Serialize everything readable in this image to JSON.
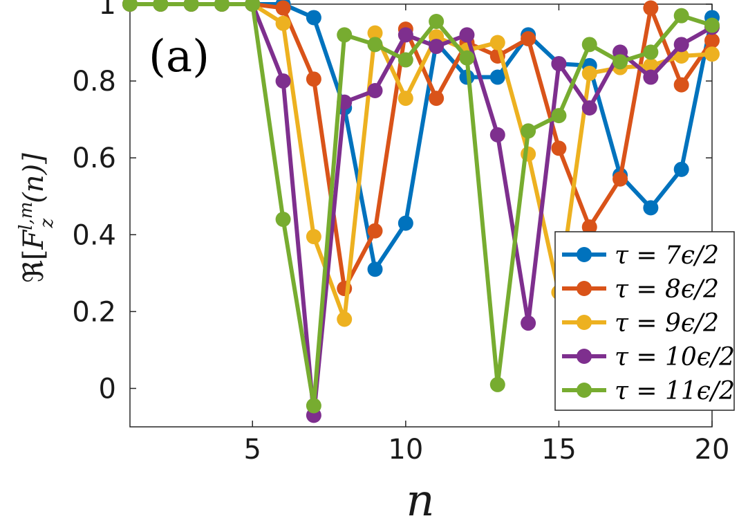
{
  "chart_data": {
    "type": "line",
    "panel_label": "(a)",
    "xlabel": "n",
    "ylabel": "ℜ[F_z^{l,m}(n)]",
    "ylabel_parts": {
      "prefix": "ℜ[",
      "base": "F",
      "sup": "l,m",
      "sub": "z",
      "suffix": "(n)]"
    },
    "xlim": [
      1,
      20
    ],
    "ylim": [
      -0.1,
      1.0
    ],
    "xticks": [
      5,
      10,
      15,
      20
    ],
    "xtick_labels": [
      "5",
      "10",
      "15",
      "20"
    ],
    "yticks": [
      0,
      0.2,
      0.4,
      0.6,
      0.8,
      1
    ],
    "ytick_labels": [
      "0",
      "0.2",
      "0.4",
      "0.6",
      "0.8",
      "1"
    ],
    "grid": false,
    "legend_position": "bottom-right",
    "x": [
      1,
      2,
      3,
      4,
      5,
      6,
      7,
      8,
      9,
      10,
      11,
      12,
      13,
      14,
      15,
      16,
      17,
      18,
      19,
      20
    ],
    "series": [
      {
        "name": "τ = 7ϵ/2",
        "color": "#0072BD",
        "values": [
          1,
          1,
          1,
          1,
          1,
          1.0,
          0.965,
          0.73,
          0.31,
          0.43,
          0.9,
          0.81,
          0.81,
          0.92,
          0.845,
          0.84,
          0.555,
          0.47,
          0.57,
          0.965
        ]
      },
      {
        "name": "τ = 8ϵ/2",
        "color": "#D95319",
        "values": [
          1,
          1,
          1,
          1,
          1,
          0.99,
          0.805,
          0.26,
          0.41,
          0.935,
          0.755,
          0.9,
          0.865,
          0.91,
          0.625,
          0.42,
          0.545,
          0.99,
          0.79,
          0.905
        ]
      },
      {
        "name": "τ = 9ϵ/2",
        "color": "#EDB120",
        "values": [
          1,
          1,
          1,
          1,
          1,
          0.95,
          0.395,
          0.18,
          0.925,
          0.755,
          0.915,
          0.88,
          0.9,
          0.61,
          0.25,
          0.82,
          0.835,
          0.84,
          0.865,
          0.87
        ]
      },
      {
        "name": "τ = 10ϵ/2",
        "color": "#7E2F8E",
        "values": [
          1,
          1,
          1,
          1,
          1,
          0.8,
          -0.07,
          0.745,
          0.775,
          0.92,
          0.89,
          0.92,
          0.66,
          0.17,
          0.845,
          0.73,
          0.875,
          0.81,
          0.895,
          0.94
        ]
      },
      {
        "name": "τ = 11ϵ/2",
        "color": "#77AC30",
        "values": [
          1,
          1,
          1,
          1,
          1,
          0.44,
          -0.045,
          0.92,
          0.895,
          0.855,
          0.955,
          0.86,
          0.01,
          0.67,
          0.71,
          0.895,
          0.85,
          0.875,
          0.97,
          0.945
        ]
      }
    ]
  }
}
